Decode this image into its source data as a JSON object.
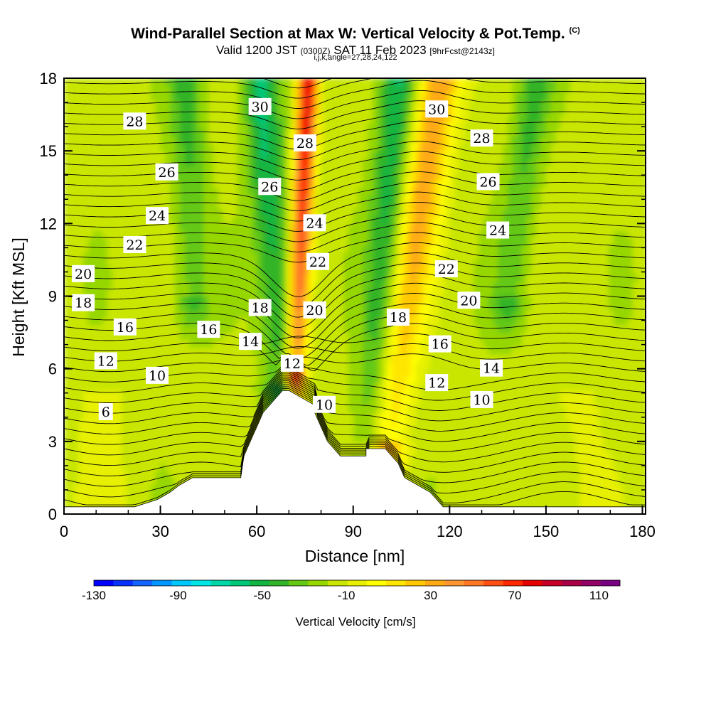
{
  "header": {
    "title": "Wind-Parallel Section at Max W: Vertical Velocity & Pot.Temp.",
    "title_tag": "(C)",
    "valid_prefix": "Valid 1200 JST",
    "valid_utc": "(0300Z)",
    "valid_date": "SAT 11 Feb 2023",
    "forecast": "[9hrFcst@2143z]",
    "indices": "i,j,k,angle=27,28,24,122"
  },
  "chart_data": {
    "type": "heatmap",
    "xlabel": "Distance [nm]",
    "ylabel": "Height [Kft MSL]",
    "xlim": [
      0,
      181
    ],
    "ylim": [
      0,
      18
    ],
    "xticks": [
      0,
      30,
      60,
      90,
      120,
      150,
      180
    ],
    "yticks": [
      0,
      3,
      6,
      9,
      12,
      15,
      18
    ],
    "grid": false,
    "colorbar": {
      "title": "Vertical Velocity [cm/s]",
      "min": -130,
      "max": 120,
      "step": 10,
      "tick_labels": [
        "-130",
        "-90",
        "-50",
        "-10",
        "30",
        "70",
        "110"
      ],
      "colors": [
        "#0000ff",
        "#0a32ff",
        "#1464ff",
        "#0096ff",
        "#00c8ff",
        "#00e6e6",
        "#00d7a8",
        "#00c878",
        "#14b440",
        "#32b428",
        "#64c814",
        "#96d700",
        "#c8e600",
        "#e6f000",
        "#ffff00",
        "#ffe600",
        "#ffc800",
        "#ffaa14",
        "#ff9632",
        "#ff7828",
        "#ff5014",
        "#ff2800",
        "#e60000",
        "#c80028",
        "#aa0046",
        "#910064",
        "#780082"
      ]
    },
    "terrain": {
      "description": "white mountain profile masking the bottom of the section",
      "x": [
        0,
        22,
        29,
        33,
        36,
        40,
        55,
        56,
        59,
        60,
        62,
        64,
        66,
        68,
        70,
        78,
        78,
        80,
        82,
        84,
        86,
        90,
        94,
        94,
        100,
        102,
        104,
        106,
        110,
        114,
        116,
        118,
        181
      ],
      "height": [
        0.3,
        0.3,
        0.6,
        0.9,
        1.2,
        1.5,
        1.5,
        2.4,
        3.3,
        3.6,
        4.2,
        4.5,
        4.8,
        5.1,
        5.1,
        4.5,
        4.2,
        3.6,
        3.0,
        2.7,
        2.4,
        2.4,
        2.4,
        2.7,
        2.7,
        2.4,
        2.1,
        1.5,
        1.2,
        0.9,
        0.6,
        0.3,
        0.3
      ]
    },
    "isentropes": {
      "variable": "Pot.Temp. (C)",
      "labels": [
        {
          "text": "6",
          "x": 13,
          "y": 4.2
        },
        {
          "text": "10",
          "x": 29,
          "y": 5.7
        },
        {
          "text": "12",
          "x": 13,
          "y": 6.3
        },
        {
          "text": "16",
          "x": 19,
          "y": 7.7
        },
        {
          "text": "16",
          "x": 45,
          "y": 7.6
        },
        {
          "text": "14",
          "x": 58,
          "y": 7.1
        },
        {
          "text": "18",
          "x": 6,
          "y": 8.7
        },
        {
          "text": "20",
          "x": 6,
          "y": 9.9
        },
        {
          "text": "22",
          "x": 22,
          "y": 11.1
        },
        {
          "text": "24",
          "x": 29,
          "y": 12.3
        },
        {
          "text": "26",
          "x": 32,
          "y": 14.1
        },
        {
          "text": "28",
          "x": 22,
          "y": 16.2
        },
        {
          "text": "30",
          "x": 61,
          "y": 16.8
        },
        {
          "text": "28",
          "x": 75,
          "y": 15.3
        },
        {
          "text": "26",
          "x": 64,
          "y": 13.5
        },
        {
          "text": "24",
          "x": 78,
          "y": 12.0
        },
        {
          "text": "22",
          "x": 79,
          "y": 10.4
        },
        {
          "text": "20",
          "x": 78,
          "y": 8.4
        },
        {
          "text": "18",
          "x": 61,
          "y": 8.5
        },
        {
          "text": "12",
          "x": 71,
          "y": 6.2
        },
        {
          "text": "10",
          "x": 81,
          "y": 4.5
        },
        {
          "text": "18",
          "x": 104,
          "y": 8.1
        },
        {
          "text": "16",
          "x": 117,
          "y": 7.0
        },
        {
          "text": "12",
          "x": 116,
          "y": 5.4
        },
        {
          "text": "14",
          "x": 133,
          "y": 6.0
        },
        {
          "text": "10",
          "x": 130,
          "y": 4.7
        },
        {
          "text": "20",
          "x": 126,
          "y": 8.8
        },
        {
          "text": "22",
          "x": 119,
          "y": 10.1
        },
        {
          "text": "24",
          "x": 135,
          "y": 11.7
        },
        {
          "text": "26",
          "x": 132,
          "y": 13.7
        },
        {
          "text": "28",
          "x": 130,
          "y": 15.5
        },
        {
          "text": "30",
          "x": 116,
          "y": 16.7
        }
      ]
    },
    "velocity_features": [
      {
        "kind": "updraft",
        "x_bottom": 72,
        "x_top": 76,
        "y_bottom": 6,
        "y_top": 18,
        "peak": 110
      },
      {
        "kind": "updraft",
        "x_bottom": 100,
        "x_top": 117,
        "y_bottom": 3,
        "y_top": 18,
        "peak": 60
      },
      {
        "kind": "downdraft",
        "x_bottom": 68,
        "x_top": 61,
        "y_bottom": 5.5,
        "y_top": 18,
        "peak": -50
      },
      {
        "kind": "downdraft",
        "x_bottom": 95,
        "x_top": 104,
        "y_bottom": 2.5,
        "y_top": 18,
        "peak": -45
      },
      {
        "kind": "downdraft",
        "x_bottom": 40,
        "x_top": 38,
        "y_bottom": 9,
        "y_top": 18,
        "peak": -30
      },
      {
        "kind": "downdraft",
        "x_bottom": 138,
        "x_top": 147,
        "y_bottom": 9,
        "y_top": 18,
        "peak": -30
      }
    ]
  }
}
